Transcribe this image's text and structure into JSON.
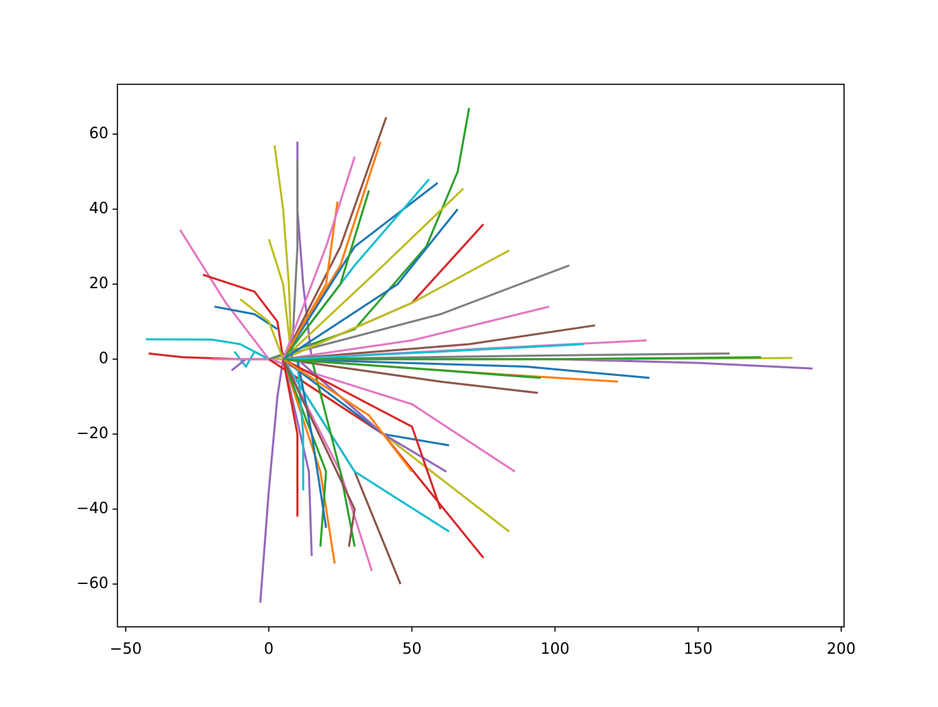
{
  "chart_data": {
    "type": "line",
    "xlim": [
      -52.9,
      201
    ],
    "ylim": [
      -71.4,
      73.3
    ],
    "xticks": [
      {
        "value": -50,
        "label": "−50"
      },
      0,
      50,
      100,
      150,
      200
    ],
    "yticks": [
      {
        "value": -60,
        "label": "−60"
      },
      {
        "value": -40,
        "label": "−40"
      },
      {
        "value": -20,
        "label": "−20"
      },
      0,
      20,
      40,
      60
    ],
    "series": [
      {
        "color": "#9467bd",
        "x": [
          -3,
          0,
          3,
          5
        ],
        "values": [
          -65,
          -35,
          -10,
          0
        ]
      },
      {
        "color": "#2ca02c",
        "x": [
          0,
          30,
          55,
          66,
          70
        ],
        "values": [
          0,
          8,
          30,
          50,
          67
        ]
      },
      {
        "color": "#17becf",
        "x": [
          -43,
          -20,
          -10,
          0
        ],
        "values": [
          5.3,
          5.2,
          4,
          0
        ]
      },
      {
        "color": "#d62728",
        "x": [
          -42,
          -30,
          -10,
          0
        ],
        "values": [
          1.5,
          0.5,
          0,
          0
        ]
      },
      {
        "color": "#e377c2",
        "x": [
          -31,
          -15,
          -5,
          0
        ],
        "values": [
          34.5,
          15,
          5,
          0
        ]
      },
      {
        "color": "#d62728",
        "x": [
          -23,
          -5,
          3,
          5
        ],
        "values": [
          22.5,
          18,
          10,
          0
        ]
      },
      {
        "color": "#1f77b4",
        "x": [
          -19,
          -5,
          3
        ],
        "values": [
          14,
          12,
          8
        ]
      },
      {
        "color": "#9467bd",
        "x": [
          0,
          100,
          150,
          190
        ],
        "values": [
          0,
          0,
          -1,
          -2.5
        ]
      },
      {
        "color": "#bcbd22",
        "x": [
          0,
          120,
          183
        ],
        "values": [
          0,
          0,
          0.3
        ]
      },
      {
        "color": "#7f7f7f",
        "x": [
          0,
          60,
          105
        ],
        "values": [
          0,
          12,
          25
        ]
      },
      {
        "color": "#e377c2",
        "x": [
          0,
          50,
          86
        ],
        "values": [
          0,
          -12,
          -30
        ]
      },
      {
        "color": "#bcbd22",
        "x": [
          0,
          40,
          84
        ],
        "values": [
          0,
          -20,
          -46
        ]
      },
      {
        "color": "#d62728",
        "x": [
          0,
          40,
          75
        ],
        "values": [
          0,
          -20,
          -53
        ]
      },
      {
        "color": "#8c564b",
        "x": [
          5,
          30,
          46
        ],
        "values": [
          0,
          -30,
          -60
        ]
      },
      {
        "color": "#e377c2",
        "x": [
          5,
          25,
          36
        ],
        "values": [
          0,
          -30,
          -56.5
        ]
      },
      {
        "color": "#ff7f0e",
        "x": [
          5,
          18,
          23
        ],
        "values": [
          0,
          -30,
          -54.5
        ]
      },
      {
        "color": "#9467bd",
        "x": [
          5,
          14,
          15
        ],
        "values": [
          0,
          -30,
          -52.5
        ]
      },
      {
        "color": "#bcbd22",
        "x": [
          2,
          5,
          7,
          8
        ],
        "values": [
          57,
          40,
          20,
          0
        ]
      },
      {
        "color": "#9467bd",
        "x": [
          10,
          10,
          12,
          15
        ],
        "values": [
          58,
          40,
          20,
          0
        ]
      },
      {
        "color": "#8c564b",
        "x": [
          5,
          25,
          41
        ],
        "values": [
          0,
          30,
          64.5
        ]
      },
      {
        "color": "#ff7f0e",
        "x": [
          5,
          25,
          39
        ],
        "values": [
          0,
          25,
          58
        ]
      },
      {
        "color": "#1f77b4",
        "x": [
          5,
          30,
          59
        ],
        "values": [
          0,
          30,
          47
        ]
      },
      {
        "color": "#bcbd22",
        "x": [
          5,
          40,
          68
        ],
        "values": [
          0,
          25,
          45.5
        ]
      },
      {
        "color": "#d62728",
        "x": [
          5,
          50,
          75
        ],
        "values": [
          0,
          15,
          36
        ]
      },
      {
        "color": "#bcbd22",
        "x": [
          5,
          50,
          84
        ],
        "values": [
          0,
          15,
          29
        ]
      },
      {
        "color": "#e377c2",
        "x": [
          5,
          50,
          98
        ],
        "values": [
          0,
          5,
          14
        ]
      },
      {
        "color": "#8c564b",
        "x": [
          5,
          70,
          114
        ],
        "values": [
          0,
          4,
          9
        ]
      },
      {
        "color": "#e377c2",
        "x": [
          5,
          80,
          132
        ],
        "values": [
          0,
          3,
          5
        ]
      },
      {
        "color": "#1f77b4",
        "x": [
          5,
          90,
          133
        ],
        "values": [
          0,
          -2,
          -5
        ]
      },
      {
        "color": "#7f7f7f",
        "x": [
          5,
          100,
          161
        ],
        "values": [
          0,
          1,
          1.5
        ]
      },
      {
        "color": "#2ca02c",
        "x": [
          5,
          100,
          172
        ],
        "values": [
          0,
          0,
          0.5
        ]
      },
      {
        "color": "#ff7f0e",
        "x": [
          5,
          80,
          122
        ],
        "values": [
          0,
          -4,
          -6
        ]
      },
      {
        "color": "#8c564b",
        "x": [
          5,
          60,
          94
        ],
        "values": [
          0,
          -6,
          -9
        ]
      },
      {
        "color": "#1f77b4",
        "x": [
          5,
          40,
          63
        ],
        "values": [
          0,
          -20,
          -23
        ]
      },
      {
        "color": "#17becf",
        "x": [
          5,
          30,
          63
        ],
        "values": [
          0,
          -30,
          -46
        ]
      },
      {
        "color": "#2ca02c",
        "x": [
          5,
          20,
          18
        ],
        "values": [
          0,
          -30,
          -50
        ]
      },
      {
        "color": "#bcbd22",
        "x": [
          0,
          5,
          8
        ],
        "values": [
          32,
          20,
          0
        ]
      },
      {
        "color": "#17becf",
        "x": [
          12,
          12,
          10
        ],
        "values": [
          -35,
          -20,
          0
        ]
      },
      {
        "color": "#1f77b4",
        "x": [
          20,
          15,
          10
        ],
        "values": [
          -45,
          -20,
          0
        ]
      },
      {
        "color": "#2ca02c",
        "x": [
          30,
          25,
          15
        ],
        "values": [
          -50,
          -30,
          0
        ]
      },
      {
        "color": "#d62728",
        "x": [
          10,
          10,
          5
        ],
        "values": [
          -42,
          -20,
          0
        ]
      },
      {
        "color": "#9467bd",
        "x": [
          10,
          40,
          62
        ],
        "values": [
          0,
          -20,
          -30
        ]
      },
      {
        "color": "#17becf",
        "x": [
          5,
          30,
          56
        ],
        "values": [
          0,
          25,
          48
        ]
      },
      {
        "color": "#7f7f7f",
        "x": [
          10,
          10,
          8
        ],
        "values": [
          53,
          30,
          0
        ]
      },
      {
        "color": "#ff7f0e",
        "x": [
          5,
          20,
          24
        ],
        "values": [
          0,
          20,
          42
        ]
      },
      {
        "color": "#17becf",
        "x": [
          -12,
          -8,
          -5,
          0
        ],
        "values": [
          2,
          -2,
          2,
          0
        ]
      },
      {
        "color": "#9467bd",
        "x": [
          -13,
          -8,
          0
        ],
        "values": [
          -3,
          0,
          0
        ]
      },
      {
        "color": "#bcbd22",
        "x": [
          -10,
          0,
          5
        ],
        "values": [
          16,
          10,
          0
        ]
      },
      {
        "color": "#e377c2",
        "x": [
          -20,
          -10,
          0
        ],
        "values": [
          0,
          0,
          0
        ]
      },
      {
        "color": "#d62728",
        "x": [
          5,
          50,
          60
        ],
        "values": [
          0,
          -18,
          -40
        ]
      },
      {
        "color": "#8c564b",
        "x": [
          5,
          30,
          28
        ],
        "values": [
          0,
          -40,
          -50
        ]
      },
      {
        "color": "#2ca02c",
        "x": [
          5,
          25,
          35
        ],
        "values": [
          0,
          20,
          45
        ]
      },
      {
        "color": "#e377c2",
        "x": [
          5,
          20,
          30
        ],
        "values": [
          0,
          30,
          54
        ]
      },
      {
        "color": "#1f77b4",
        "x": [
          5,
          45,
          66
        ],
        "values": [
          0,
          20,
          40
        ]
      },
      {
        "color": "#ff7f0e",
        "x": [
          5,
          35,
          50
        ],
        "values": [
          0,
          -15,
          -30
        ]
      },
      {
        "color": "#17becf",
        "x": [
          5,
          60,
          110
        ],
        "values": [
          0,
          2,
          4
        ]
      },
      {
        "color": "#2ca02c",
        "x": [
          5,
          60,
          95
        ],
        "values": [
          0,
          -3,
          -5
        ]
      }
    ]
  }
}
